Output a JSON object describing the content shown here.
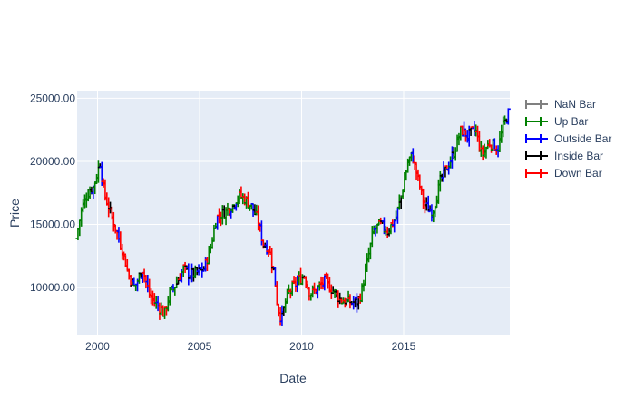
{
  "chart_data": {
    "type": "ohlc",
    "xlabel": "Date",
    "ylabel": "Price",
    "xlim": [
      1999.0,
      2020.2
    ],
    "ylim": [
      6200,
      25600
    ],
    "x_ticks": [
      {
        "value": 2000,
        "label": "2000"
      },
      {
        "value": 2005,
        "label": "2005"
      },
      {
        "value": 2010,
        "label": "2010"
      },
      {
        "value": 2015,
        "label": "2015"
      }
    ],
    "y_ticks": [
      {
        "value": 10000,
        "label": "10000.00"
      },
      {
        "value": 15000,
        "label": "15000.00"
      },
      {
        "value": 20000,
        "label": "20000.00"
      },
      {
        "value": 25000,
        "label": "25000.00"
      }
    ],
    "grid": true,
    "legend_position": "right",
    "series": [
      {
        "name": "NaN Bar",
        "color": "#808080"
      },
      {
        "name": "Up Bar",
        "color": "#008000"
      },
      {
        "name": "Outside Bar",
        "color": "#0000ff"
      },
      {
        "name": "Inside Bar",
        "color": "#000000"
      },
      {
        "name": "Down Bar",
        "color": "#ff0000"
      }
    ],
    "anchors": [
      [
        1999.0,
        13500
      ],
      [
        1999.3,
        16200
      ],
      [
        1999.6,
        17500
      ],
      [
        1999.9,
        18000
      ],
      [
        2000.2,
        20000
      ],
      [
        2000.4,
        17500
      ],
      [
        2000.7,
        16000
      ],
      [
        2001.0,
        14500
      ],
      [
        2001.3,
        13000
      ],
      [
        2001.6,
        11000
      ],
      [
        2001.9,
        10000
      ],
      [
        2002.3,
        11500
      ],
      [
        2002.6,
        9500
      ],
      [
        2002.9,
        8800
      ],
      [
        2003.2,
        8300
      ],
      [
        2003.35,
        7800
      ],
      [
        2003.6,
        9500
      ],
      [
        2003.9,
        10200
      ],
      [
        2004.3,
        11500
      ],
      [
        2004.6,
        11000
      ],
      [
        2005.0,
        11200
      ],
      [
        2005.3,
        11500
      ],
      [
        2005.6,
        13000
      ],
      [
        2005.9,
        15500
      ],
      [
        2006.3,
        16000
      ],
      [
        2006.7,
        16500
      ],
      [
        2007.0,
        17300
      ],
      [
        2007.3,
        17000
      ],
      [
        2007.6,
        16500
      ],
      [
        2007.9,
        15500
      ],
      [
        2008.2,
        13500
      ],
      [
        2008.5,
        13000
      ],
      [
        2008.75,
        11000
      ],
      [
        2008.9,
        8500
      ],
      [
        2009.1,
        7500
      ],
      [
        2009.4,
        9500
      ],
      [
        2009.8,
        10300
      ],
      [
        2010.2,
        11000
      ],
      [
        2010.5,
        9500
      ],
      [
        2010.8,
        9800
      ],
      [
        2011.2,
        10500
      ],
      [
        2011.6,
        9800
      ],
      [
        2012.0,
        9000
      ],
      [
        2012.4,
        8800
      ],
      [
        2012.8,
        8800
      ],
      [
        2013.0,
        9500
      ],
      [
        2013.3,
        12000
      ],
      [
        2013.6,
        14500
      ],
      [
        2013.9,
        15000
      ],
      [
        2014.3,
        14500
      ],
      [
        2014.7,
        15500
      ],
      [
        2015.0,
        17500
      ],
      [
        2015.3,
        20000
      ],
      [
        2015.5,
        20500
      ],
      [
        2015.8,
        18500
      ],
      [
        2016.1,
        16500
      ],
      [
        2016.5,
        16000
      ],
      [
        2016.9,
        18500
      ],
      [
        2017.2,
        19500
      ],
      [
        2017.5,
        20500
      ],
      [
        2017.9,
        22500
      ],
      [
        2018.2,
        22000
      ],
      [
        2018.6,
        22500
      ],
      [
        2018.9,
        20500
      ],
      [
        2019.3,
        21500
      ],
      [
        2019.7,
        21000
      ],
      [
        2020.0,
        23000
      ],
      [
        2020.2,
        23800
      ]
    ]
  }
}
